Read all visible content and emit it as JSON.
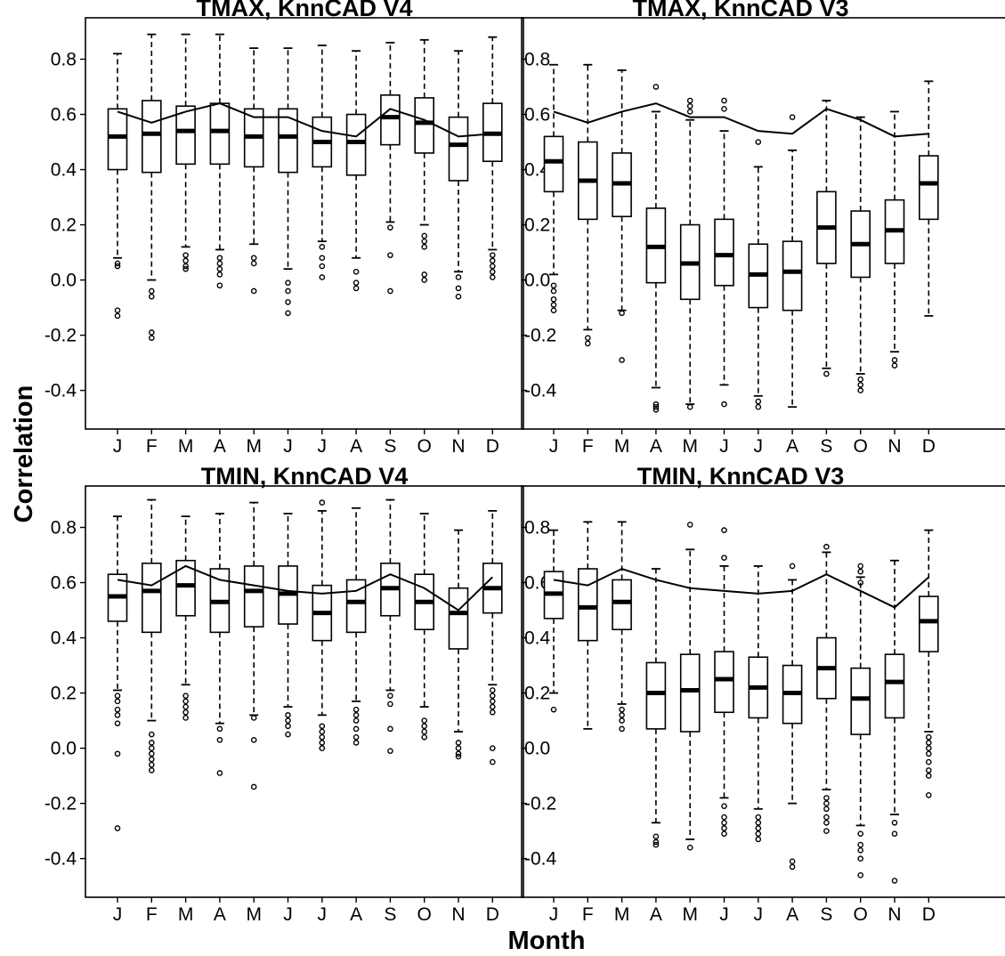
{
  "chart_data": [
    {
      "type": "box",
      "title": "TMAX, KnnCAD V4",
      "categories": [
        "J",
        "F",
        "M",
        "A",
        "M",
        "J",
        "J",
        "A",
        "S",
        "O",
        "N",
        "D"
      ],
      "yticks": [
        "0.8",
        "0.6",
        "0.4",
        "0.2",
        "0.0",
        "-0.2",
        "-0.4"
      ],
      "ylim": [
        -0.54,
        0.95
      ],
      "boxes": [
        {
          "whisker_low": 0.08,
          "q1": 0.4,
          "median": 0.52,
          "q3": 0.62,
          "whisker_high": 0.82,
          "outliers": [
            0.06,
            0.05,
            -0.11,
            -0.13
          ]
        },
        {
          "whisker_low": 0.0,
          "q1": 0.39,
          "median": 0.53,
          "q3": 0.65,
          "whisker_high": 0.89,
          "outliers": [
            -0.04,
            -0.06,
            -0.19,
            -0.21
          ]
        },
        {
          "whisker_low": 0.12,
          "q1": 0.42,
          "median": 0.54,
          "q3": 0.63,
          "whisker_high": 0.89,
          "outliers": [
            0.09,
            0.07,
            0.05,
            0.04
          ]
        },
        {
          "whisker_low": 0.11,
          "q1": 0.42,
          "median": 0.54,
          "q3": 0.64,
          "whisker_high": 0.89,
          "outliers": [
            0.08,
            0.06,
            0.04,
            0.02,
            -0.02
          ]
        },
        {
          "whisker_low": 0.13,
          "q1": 0.41,
          "median": 0.52,
          "q3": 0.62,
          "whisker_high": 0.84,
          "outliers": [
            0.08,
            0.06,
            -0.04
          ]
        },
        {
          "whisker_low": 0.04,
          "q1": 0.39,
          "median": 0.52,
          "q3": 0.62,
          "whisker_high": 0.84,
          "outliers": [
            -0.01,
            -0.04,
            -0.08,
            -0.12
          ]
        },
        {
          "whisker_low": 0.14,
          "q1": 0.41,
          "median": 0.5,
          "q3": 0.59,
          "whisker_high": 0.85,
          "outliers": [
            0.12,
            0.08,
            0.05,
            0.01
          ]
        },
        {
          "whisker_low": 0.08,
          "q1": 0.38,
          "median": 0.5,
          "q3": 0.6,
          "whisker_high": 0.83,
          "outliers": [
            0.03,
            -0.01,
            -0.03
          ]
        },
        {
          "whisker_low": 0.21,
          "q1": 0.49,
          "median": 0.59,
          "q3": 0.67,
          "whisker_high": 0.86,
          "outliers": [
            0.19,
            0.09,
            -0.04
          ]
        },
        {
          "whisker_low": 0.2,
          "q1": 0.46,
          "median": 0.57,
          "q3": 0.66,
          "whisker_high": 0.87,
          "outliers": [
            0.16,
            0.14,
            0.12,
            0.02,
            0.0
          ]
        },
        {
          "whisker_low": 0.03,
          "q1": 0.36,
          "median": 0.49,
          "q3": 0.59,
          "whisker_high": 0.83,
          "outliers": [
            0.01,
            -0.03,
            -0.06
          ]
        },
        {
          "whisker_low": 0.11,
          "q1": 0.43,
          "median": 0.53,
          "q3": 0.64,
          "whisker_high": 0.88,
          "outliers": [
            0.09,
            0.07,
            0.05,
            0.03,
            0.01
          ]
        }
      ],
      "line": [
        0.61,
        0.57,
        0.61,
        0.64,
        0.59,
        0.59,
        0.54,
        0.52,
        0.62,
        0.58,
        0.52,
        0.53
      ]
    },
    {
      "type": "box",
      "title": "TMAX, KnnCAD V3",
      "categories": [
        "J",
        "F",
        "M",
        "A",
        "M",
        "J",
        "J",
        "A",
        "S",
        "O",
        "N",
        "D"
      ],
      "yticks": [
        "0.8",
        "0.6",
        "0.4",
        "0.2",
        "0.0",
        "-0.2",
        "-0.4"
      ],
      "ylim": [
        -0.54,
        0.95
      ],
      "boxes": [
        {
          "whisker_low": 0.02,
          "q1": 0.32,
          "median": 0.43,
          "q3": 0.52,
          "whisker_high": 0.78,
          "outliers": [
            -0.02,
            -0.04,
            -0.07,
            -0.09,
            -0.11
          ]
        },
        {
          "whisker_low": -0.18,
          "q1": 0.22,
          "median": 0.36,
          "q3": 0.5,
          "whisker_high": 0.78,
          "outliers": [
            -0.21,
            -0.23
          ]
        },
        {
          "whisker_low": -0.11,
          "q1": 0.23,
          "median": 0.35,
          "q3": 0.46,
          "whisker_high": 0.76,
          "outliers": [
            -0.12,
            -0.29
          ]
        },
        {
          "whisker_low": -0.39,
          "q1": -0.01,
          "median": 0.12,
          "q3": 0.26,
          "whisker_high": 0.61,
          "outliers": [
            0.7,
            -0.45,
            -0.46,
            -0.47
          ]
        },
        {
          "whisker_low": -0.45,
          "q1": -0.07,
          "median": 0.06,
          "q3": 0.2,
          "whisker_high": 0.58,
          "outliers": [
            0.65,
            0.63,
            0.61,
            -0.46
          ]
        },
        {
          "whisker_low": -0.38,
          "q1": -0.02,
          "median": 0.09,
          "q3": 0.22,
          "whisker_high": 0.54,
          "outliers": [
            0.65,
            0.62,
            -0.45
          ]
        },
        {
          "whisker_low": -0.42,
          "q1": -0.1,
          "median": 0.02,
          "q3": 0.13,
          "whisker_high": 0.41,
          "outliers": [
            0.5,
            -0.44,
            -0.46
          ]
        },
        {
          "whisker_low": -0.46,
          "q1": -0.11,
          "median": 0.03,
          "q3": 0.14,
          "whisker_high": 0.47,
          "outliers": [
            0.59
          ]
        },
        {
          "whisker_low": -0.32,
          "q1": 0.06,
          "median": 0.19,
          "q3": 0.32,
          "whisker_high": 0.65,
          "outliers": [
            -0.34
          ]
        },
        {
          "whisker_low": -0.34,
          "q1": 0.01,
          "median": 0.13,
          "q3": 0.25,
          "whisker_high": 0.59,
          "outliers": [
            -0.36,
            -0.38,
            -0.4
          ]
        },
        {
          "whisker_low": -0.26,
          "q1": 0.06,
          "median": 0.18,
          "q3": 0.29,
          "whisker_high": 0.61,
          "outliers": [
            -0.29,
            -0.31
          ]
        },
        {
          "whisker_low": -0.13,
          "q1": 0.22,
          "median": 0.35,
          "q3": 0.45,
          "whisker_high": 0.72,
          "outliers": []
        }
      ],
      "line": [
        0.61,
        0.57,
        0.61,
        0.64,
        0.59,
        0.59,
        0.54,
        0.53,
        0.62,
        0.58,
        0.52,
        0.53
      ]
    },
    {
      "type": "box",
      "title": "TMIN, KnnCAD V4",
      "categories": [
        "J",
        "F",
        "M",
        "A",
        "M",
        "J",
        "J",
        "A",
        "S",
        "O",
        "N",
        "D"
      ],
      "yticks": [
        "0.8",
        "0.6",
        "0.4",
        "0.2",
        "0.0",
        "-0.2",
        "-0.4"
      ],
      "ylim": [
        -0.54,
        0.95
      ],
      "boxes": [
        {
          "whisker_low": 0.21,
          "q1": 0.46,
          "median": 0.55,
          "q3": 0.63,
          "whisker_high": 0.84,
          "outliers": [
            0.19,
            0.17,
            0.14,
            0.12,
            0.09,
            -0.02,
            -0.29
          ]
        },
        {
          "whisker_low": 0.1,
          "q1": 0.42,
          "median": 0.57,
          "q3": 0.67,
          "whisker_high": 0.9,
          "outliers": [
            0.05,
            0.02,
            0.0,
            -0.02,
            -0.04,
            -0.06,
            -0.08
          ]
        },
        {
          "whisker_low": 0.23,
          "q1": 0.48,
          "median": 0.59,
          "q3": 0.68,
          "whisker_high": 0.84,
          "outliers": [
            0.19,
            0.17,
            0.15,
            0.13,
            0.11
          ]
        },
        {
          "whisker_low": 0.09,
          "q1": 0.42,
          "median": 0.53,
          "q3": 0.65,
          "whisker_high": 0.85,
          "outliers": [
            0.07,
            0.03,
            -0.09
          ]
        },
        {
          "whisker_low": 0.12,
          "q1": 0.44,
          "median": 0.57,
          "q3": 0.66,
          "whisker_high": 0.89,
          "outliers": [
            0.11,
            0.03,
            -0.14
          ]
        },
        {
          "whisker_low": 0.15,
          "q1": 0.45,
          "median": 0.56,
          "q3": 0.66,
          "whisker_high": 0.85,
          "outliers": [
            0.12,
            0.1,
            0.08,
            0.05
          ]
        },
        {
          "whisker_low": 0.12,
          "q1": 0.39,
          "median": 0.49,
          "q3": 0.59,
          "whisker_high": 0.86,
          "outliers": [
            0.89,
            0.08,
            0.06,
            0.04,
            0.02,
            0.0
          ]
        },
        {
          "whisker_low": 0.17,
          "q1": 0.42,
          "median": 0.53,
          "q3": 0.61,
          "whisker_high": 0.87,
          "outliers": [
            0.14,
            0.12,
            0.1,
            0.07,
            0.04,
            0.02
          ]
        },
        {
          "whisker_low": 0.21,
          "q1": 0.48,
          "median": 0.58,
          "q3": 0.67,
          "whisker_high": 0.9,
          "outliers": [
            0.19,
            0.16,
            0.07,
            -0.01
          ]
        },
        {
          "whisker_low": 0.15,
          "q1": 0.43,
          "median": 0.53,
          "q3": 0.63,
          "whisker_high": 0.85,
          "outliers": [
            0.1,
            0.08,
            0.06,
            0.04
          ]
        },
        {
          "whisker_low": 0.06,
          "q1": 0.36,
          "median": 0.49,
          "q3": 0.58,
          "whisker_high": 0.79,
          "outliers": [
            0.02,
            0.0,
            -0.02,
            -0.03
          ]
        },
        {
          "whisker_low": 0.23,
          "q1": 0.49,
          "median": 0.58,
          "q3": 0.67,
          "whisker_high": 0.86,
          "outliers": [
            0.21,
            0.19,
            0.17,
            0.15,
            0.13,
            0.0,
            -0.05
          ]
        }
      ],
      "line": [
        0.61,
        0.59,
        0.66,
        0.61,
        0.59,
        0.57,
        0.56,
        0.57,
        0.63,
        0.58,
        0.5,
        0.62
      ]
    },
    {
      "type": "box",
      "title": "TMIN, KnnCAD V3",
      "categories": [
        "J",
        "F",
        "M",
        "A",
        "M",
        "J",
        "J",
        "A",
        "S",
        "O",
        "N",
        "D"
      ],
      "yticks": [
        "0.8",
        "0.6",
        "0.4",
        "0.2",
        "0.0",
        "-0.2",
        "-0.4"
      ],
      "ylim": [
        -0.54,
        0.95
      ],
      "boxes": [
        {
          "whisker_low": 0.2,
          "q1": 0.47,
          "median": 0.56,
          "q3": 0.64,
          "whisker_high": 0.79,
          "outliers": [
            0.14
          ]
        },
        {
          "whisker_low": 0.07,
          "q1": 0.39,
          "median": 0.51,
          "q3": 0.65,
          "whisker_high": 0.82,
          "outliers": []
        },
        {
          "whisker_low": 0.16,
          "q1": 0.43,
          "median": 0.53,
          "q3": 0.61,
          "whisker_high": 0.82,
          "outliers": [
            0.14,
            0.12,
            0.1,
            0.07
          ]
        },
        {
          "whisker_low": -0.27,
          "q1": 0.07,
          "median": 0.2,
          "q3": 0.31,
          "whisker_high": 0.65,
          "outliers": [
            -0.32,
            -0.34,
            -0.35
          ]
        },
        {
          "whisker_low": -0.33,
          "q1": 0.06,
          "median": 0.21,
          "q3": 0.34,
          "whisker_high": 0.72,
          "outliers": [
            0.81,
            -0.36
          ]
        },
        {
          "whisker_low": -0.18,
          "q1": 0.13,
          "median": 0.25,
          "q3": 0.35,
          "whisker_high": 0.66,
          "outliers": [
            0.79,
            0.69,
            -0.21,
            -0.25,
            -0.27,
            -0.29,
            -0.31
          ]
        },
        {
          "whisker_low": -0.22,
          "q1": 0.11,
          "median": 0.22,
          "q3": 0.33,
          "whisker_high": 0.66,
          "outliers": [
            -0.25,
            -0.27,
            -0.29,
            -0.31,
            -0.33
          ]
        },
        {
          "whisker_low": -0.2,
          "q1": 0.09,
          "median": 0.2,
          "q3": 0.3,
          "whisker_high": 0.61,
          "outliers": [
            0.66,
            -0.41,
            -0.43
          ]
        },
        {
          "whisker_low": -0.15,
          "q1": 0.18,
          "median": 0.29,
          "q3": 0.4,
          "whisker_high": 0.71,
          "outliers": [
            0.73,
            -0.18,
            -0.2,
            -0.22,
            -0.25,
            -0.27,
            -0.3
          ]
        },
        {
          "whisker_low": -0.28,
          "q1": 0.05,
          "median": 0.18,
          "q3": 0.29,
          "whisker_high": 0.62,
          "outliers": [
            0.66,
            0.64,
            0.6,
            -0.31,
            -0.35,
            -0.37,
            -0.4,
            -0.46
          ]
        },
        {
          "whisker_low": -0.24,
          "q1": 0.11,
          "median": 0.24,
          "q3": 0.34,
          "whisker_high": 0.68,
          "outliers": [
            -0.27,
            -0.31,
            -0.48
          ]
        },
        {
          "whisker_low": 0.06,
          "q1": 0.35,
          "median": 0.46,
          "q3": 0.55,
          "whisker_high": 0.79,
          "outliers": [
            0.04,
            0.02,
            0.0,
            -0.02,
            -0.05,
            -0.08,
            -0.1,
            -0.17
          ]
        }
      ],
      "line": [
        0.61,
        0.59,
        0.65,
        0.61,
        0.58,
        0.57,
        0.56,
        0.57,
        0.63,
        0.57,
        0.51,
        0.62
      ]
    }
  ],
  "labels": {
    "ylabel": "Correlation",
    "xlabel": "Month"
  }
}
